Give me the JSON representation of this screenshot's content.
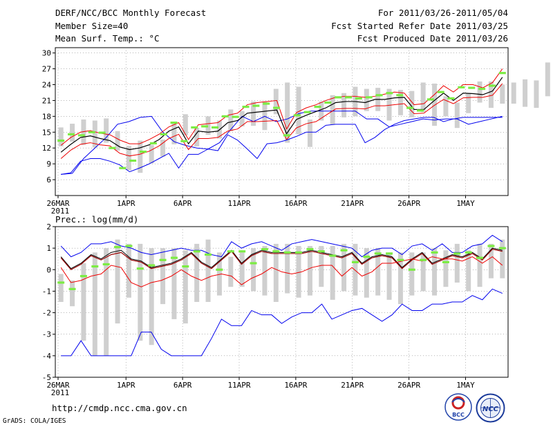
{
  "header": {
    "title": "DERF/NCC/BCC Monthly Forecast",
    "member_size": "Member Size=40",
    "variable": "Mean Surf. Temp.: °C",
    "period": "For 2011/03/26-2011/05/04",
    "start_date": "Fcst Started Refer Date 2011/03/25",
    "produced_date": "Fcst Produced Date 2011/03/26"
  },
  "footer": {
    "url": "http://cmdp.ncc.cma.gov.cn",
    "credit": "GrADS: COLA/IGES",
    "logo_bcc": "BCC",
    "logo_ncc": "NCC"
  },
  "chart_data": [
    {
      "type": "line",
      "title": "Mean Surf. Temp.: °C",
      "ylim": [
        3,
        31
      ],
      "yticks": [
        6,
        9,
        12,
        15,
        18,
        21,
        24,
        27,
        30
      ],
      "x_tick_labels": [
        "26MAR",
        "1APR",
        "6APR",
        "11APR",
        "16APR",
        "21APR",
        "26APR",
        "1MAY"
      ],
      "x_tick_days": [
        0,
        6,
        11,
        16,
        21,
        26,
        31,
        36
      ],
      "year_label": "2011",
      "grid": true,
      "series": [
        {
          "name": "max",
          "color": "#0000ee",
          "values": [
            7,
            7.2,
            10,
            12,
            14,
            16.5,
            17,
            17.8,
            18,
            15,
            13.2,
            12.5,
            12,
            11.8,
            13,
            15.5,
            18,
            17,
            18,
            17,
            17.5,
            18.5,
            19,
            19,
            19,
            19,
            19,
            17.5,
            17.5,
            16,
            16.5,
            17,
            17.5,
            17.3,
            17.5,
            17.5,
            16.5,
            17,
            17.5,
            18
          ]
        },
        {
          "name": "upper",
          "color": "#ee0000",
          "values": [
            12.5,
            14,
            15,
            15.3,
            14.8,
            14.5,
            13.5,
            12.8,
            12.8,
            13.6,
            14.6,
            16,
            16.8,
            13.6,
            16.4,
            16.6,
            16.8,
            18.2,
            18.6,
            20.2,
            20.6,
            20.8,
            21,
            15.6,
            18.7,
            19.6,
            20.2,
            21,
            21.6,
            21.8,
            21.8,
            21.6,
            21.8,
            22.2,
            22.6,
            22.4,
            20.2,
            20.4,
            22,
            23.8,
            22.6,
            24,
            24,
            23.4,
            24.4,
            27
          ]
        },
        {
          "name": "mean",
          "color": "#000000",
          "values": [
            11.2,
            12.7,
            14,
            14.3,
            13.8,
            13.4,
            12.2,
            11.7,
            12,
            12.6,
            13.6,
            15.2,
            16,
            12.8,
            15.2,
            15,
            15.2,
            16.8,
            17.2,
            18.6,
            18.8,
            19,
            19.2,
            14.7,
            17.4,
            18.2,
            18.9,
            19.6,
            20.6,
            20.8,
            20.8,
            20.6,
            21.2,
            21.2,
            21.5,
            21.6,
            19.3,
            19.3,
            20.9,
            22.4,
            21,
            22.4,
            22.3,
            22.1,
            22.8,
            25.4
          ]
        },
        {
          "name": "lower",
          "color": "#ee0000",
          "values": [
            10,
            11.6,
            12.7,
            13,
            12.6,
            12.4,
            11,
            10.5,
            10.8,
            11.4,
            12.4,
            13.8,
            14.6,
            11.7,
            13.8,
            13.8,
            14,
            15.2,
            15.6,
            17,
            17,
            17.1,
            17.2,
            13.6,
            15.8,
            16.6,
            17,
            18.2,
            19.4,
            19.5,
            19.5,
            19.4,
            20,
            20,
            20.2,
            20.4,
            18.5,
            18.6,
            20,
            21.2,
            20.4,
            21.5,
            21.6,
            21.6,
            22,
            24.2
          ]
        },
        {
          "name": "min",
          "color": "#0000ee",
          "values": [
            7,
            7.3,
            9.5,
            10,
            10,
            9.5,
            8.8,
            7.5,
            8.2,
            9,
            10,
            11,
            8.2,
            10.8,
            10.8,
            11.8,
            11.5,
            14.5,
            13.5,
            11.8,
            10,
            12.8,
            13,
            13.5,
            14.2,
            15,
            15,
            16.3,
            16.5,
            16.5,
            16.5,
            13,
            14,
            15.5,
            16.5,
            17.2,
            17.5,
            17.8,
            17.8,
            17,
            17.5,
            17.8,
            17.8,
            17.8,
            17.8,
            17.8
          ]
        },
        {
          "name": "observed",
          "color": "#7cec43",
          "values": [
            13.4,
            14.6,
            14.4,
            15,
            14.9,
            12,
            8.2,
            9.6,
            11.3,
            12.9,
            14.6,
            16.8,
            13.3,
            15.9,
            16.1,
            15.9,
            18,
            17.9,
            19.8,
            20,
            20.4,
            19.6,
            14.4,
            18.2,
            18.8,
            19.8,
            20.6,
            21.6,
            21.6,
            21.4,
            21.6,
            22,
            22.4,
            22,
            19.6,
            19.1,
            21.2,
            22.6,
            21.4,
            23.5,
            23.4,
            23.2,
            23.8,
            26.2
          ]
        }
      ],
      "box_ranges": [
        [
          12.3,
          15.9
        ],
        [
          13.2,
          16.6
        ],
        [
          12.6,
          17.4
        ],
        [
          12.1,
          17.2
        ],
        [
          13,
          17.6
        ],
        [
          11.5,
          15.2
        ],
        [
          7.8,
          12.4
        ],
        [
          7.3,
          13.4
        ],
        [
          9.1,
          12.6
        ],
        [
          10.4,
          13.6
        ],
        [
          12.7,
          16.8
        ],
        [
          14.4,
          18.4
        ],
        [
          12.3,
          15.8
        ],
        [
          14.5,
          18
        ],
        [
          13.8,
          17.2
        ],
        [
          15.2,
          19.3
        ],
        [
          16.1,
          19
        ],
        [
          16.2,
          20.8
        ],
        [
          15.4,
          20.8
        ],
        [
          18.4,
          23.2
        ],
        [
          13,
          24.4
        ],
        [
          14.6,
          23.6
        ],
        [
          12.2,
          17.4
        ],
        [
          17.2,
          20.8
        ],
        [
          16.4,
          22
        ],
        [
          17.8,
          22.4
        ],
        [
          18,
          23.6
        ],
        [
          19,
          23.2
        ],
        [
          19,
          23.4
        ],
        [
          17.2,
          23.2
        ],
        [
          18.2,
          23
        ],
        [
          17.8,
          22.8
        ],
        [
          18.8,
          24.4
        ],
        [
          16.2,
          24.2
        ],
        [
          18,
          21.8
        ],
        [
          15.8,
          20.6
        ],
        [
          18.6,
          22.4
        ],
        [
          20.6,
          24.6
        ],
        [
          19.6,
          24.6
        ],
        [
          20.4,
          24
        ],
        [
          20.4,
          24.4
        ],
        [
          19.8,
          25
        ],
        [
          19.6,
          24.8
        ],
        [
          21.8,
          28.2
        ]
      ]
    },
    {
      "type": "line",
      "title": "Prec.: log(mm/d)",
      "ylim": [
        -5,
        2
      ],
      "yticks": [
        -5,
        -4,
        -3,
        -2,
        -1,
        0,
        1,
        2
      ],
      "x_tick_labels": [
        "26MAR",
        "1APR",
        "6APR",
        "11APR",
        "16APR",
        "21APR",
        "26APR",
        "1MAY"
      ],
      "x_tick_days": [
        0,
        6,
        11,
        16,
        21,
        26,
        31,
        36
      ],
      "year_label": "2011",
      "grid": true,
      "series": [
        {
          "name": "max",
          "color": "#0000ee",
          "values": [
            1.1,
            0.6,
            0.8,
            1.2,
            1.2,
            1.3,
            1.1,
            1,
            0.8,
            0.7,
            0.8,
            0.9,
            1,
            0.9,
            0.9,
            0.7,
            0.6,
            1.3,
            1,
            1.2,
            1.3,
            1.1,
            0.9,
            1.2,
            1.3,
            1.4,
            1.3,
            1.2,
            1.1,
            1,
            0.6,
            0.9,
            1,
            1,
            0.7,
            1.1,
            1.2,
            0.9,
            1.2,
            0.8,
            0.8,
            1.1,
            1.2,
            1.6,
            1.3
          ]
        },
        {
          "name": "upper",
          "color": "#000000",
          "values": [
            0.6,
            0.05,
            0.3,
            0.7,
            0.5,
            0.8,
            0.9,
            0.5,
            0.4,
            0.1,
            0.2,
            0.3,
            0.5,
            0.8,
            0.35,
            0.1,
            0.5,
            0.9,
            0.3,
            0.7,
            0.9,
            0.8,
            0.8,
            0.8,
            0.8,
            0.9,
            0.8,
            0.7,
            0.6,
            0.8,
            0.3,
            0.6,
            0.7,
            0.6,
            0.1,
            0.5,
            0.8,
            0.3,
            0.5,
            0.7,
            0.6,
            0.8,
            0.5,
            1,
            0.9
          ]
        },
        {
          "name": "mean",
          "color": "#990000",
          "values": [
            0.55,
            0,
            0.25,
            0.65,
            0.45,
            0.7,
            0.8,
            0.45,
            0.35,
            0.05,
            0.15,
            0.25,
            0.45,
            0.75,
            0.3,
            0.05,
            0.45,
            0.85,
            0.25,
            0.65,
            0.85,
            0.75,
            0.75,
            0.75,
            0.75,
            0.85,
            0.75,
            0.65,
            0.55,
            0.75,
            0.25,
            0.55,
            0.65,
            0.55,
            0.05,
            0.45,
            0.75,
            0.25,
            0.45,
            0.65,
            0.55,
            0.75,
            0.45,
            0.95,
            0.85
          ]
        },
        {
          "name": "lower",
          "color": "#ee0000",
          "values": [
            0.1,
            -0.6,
            -0.5,
            -0.3,
            -0.2,
            0.2,
            0.1,
            -0.6,
            -0.8,
            -0.6,
            -0.5,
            -0.3,
            0,
            -0.3,
            -0.5,
            -0.3,
            -0.2,
            -0.3,
            -0.7,
            -0.4,
            -0.2,
            0.1,
            -0.1,
            -0.2,
            -0.1,
            0.1,
            0.2,
            0.2,
            -0.3,
            0.1,
            -0.3,
            -0.1,
            0.3,
            0.3,
            0.4,
            0.5,
            0.4,
            0.6,
            0.5,
            0.5,
            0.4,
            0.6,
            0.3,
            0.6,
            0.2
          ]
        },
        {
          "name": "min",
          "color": "#0000ee",
          "values": [
            -4,
            -4,
            -3.3,
            -4,
            -4,
            -4,
            -4,
            -4,
            -2.9,
            -2.9,
            -3.7,
            -4,
            -4,
            -4,
            -4,
            -3.2,
            -2.3,
            -2.6,
            -2.6,
            -1.9,
            -2.1,
            -2.1,
            -2.5,
            -2.2,
            -2,
            -2,
            -1.6,
            -2.3,
            -2.1,
            -1.9,
            -1.8,
            -2.1,
            -2.4,
            -2.1,
            -1.6,
            -1.9,
            -1.9,
            -1.6,
            -1.6,
            -1.5,
            -1.5,
            -1.2,
            -1.4,
            -0.9,
            -1.1
          ]
        },
        {
          "name": "observed",
          "color": "#7cec43",
          "values": [
            -0.6,
            -0.9,
            -0.3,
            0.15,
            0.25,
            1.05,
            1.1,
            0.05,
            0.2,
            0.45,
            0.55,
            0.15,
            0.85,
            0.7,
            0,
            0.85,
            0.85,
            0.3,
            0.95,
            0.85,
            0.8,
            0.8,
            0.95,
            0.85,
            0.65,
            0.9,
            0.35,
            0.6,
            0.75,
            0.75,
            0.45,
            0,
            0.45,
            0.8,
            0.35,
            0.75,
            0.8,
            0.55,
            1.1,
            1.0
          ]
        },
        {
          "name": "box_top",
          "color": "#cccccc",
          "values": [
            -0.2,
            -0.3,
            0.3,
            0.8,
            1,
            1.4,
            1.2,
            1.2,
            1,
            1,
            1,
            0.9,
            1.2,
            1.4,
            0.8,
            0.6,
            0.8,
            1,
            1.1,
            1.2,
            1.2,
            1.1,
            1.1,
            1.1,
            1.1,
            1.2,
            1.2,
            1,
            1,
            0.8,
            0.8,
            0.8,
            0.8,
            1,
            0.9,
            1.2,
            0.9,
            1.2,
            1.2,
            1.4
          ]
        }
      ],
      "box_ranges": [
        [
          -1.5,
          -0.2
        ],
        [
          -1.7,
          -0.5
        ],
        [
          -3.3,
          0.3
        ],
        [
          -4,
          0.8
        ],
        [
          -4,
          1
        ],
        [
          -2.5,
          1.4
        ],
        [
          -1.3,
          1.2
        ],
        [
          -3.3,
          1.2
        ],
        [
          -3.5,
          1
        ],
        [
          -1.6,
          1
        ],
        [
          -2.3,
          1
        ],
        [
          -2.5,
          0.9
        ],
        [
          -1.5,
          1.2
        ],
        [
          -1.5,
          1.4
        ],
        [
          -1.2,
          0.8
        ],
        [
          -0.8,
          0.6
        ],
        [
          -0.8,
          0.8
        ],
        [
          -1,
          1
        ],
        [
          -1.2,
          1.1
        ],
        [
          -1.5,
          1.2
        ],
        [
          -1.1,
          1.2
        ],
        [
          -1.3,
          1.1
        ],
        [
          -1.2,
          1.1
        ],
        [
          -0.8,
          1.1
        ],
        [
          -1.4,
          1.1
        ],
        [
          -1,
          1.2
        ],
        [
          -1.2,
          1.2
        ],
        [
          -1.3,
          1
        ],
        [
          -1.2,
          1
        ],
        [
          -1.4,
          0.8
        ],
        [
          -1.6,
          0.8
        ],
        [
          -1.2,
          0.8
        ],
        [
          -1,
          0.8
        ],
        [
          -1.2,
          1
        ],
        [
          -0.8,
          0.9
        ],
        [
          -0.6,
          1.2
        ],
        [
          -1,
          0.9
        ],
        [
          -0.8,
          1.2
        ],
        [
          -0.4,
          1.2
        ],
        [
          -0.4,
          1.4
        ]
      ]
    }
  ]
}
